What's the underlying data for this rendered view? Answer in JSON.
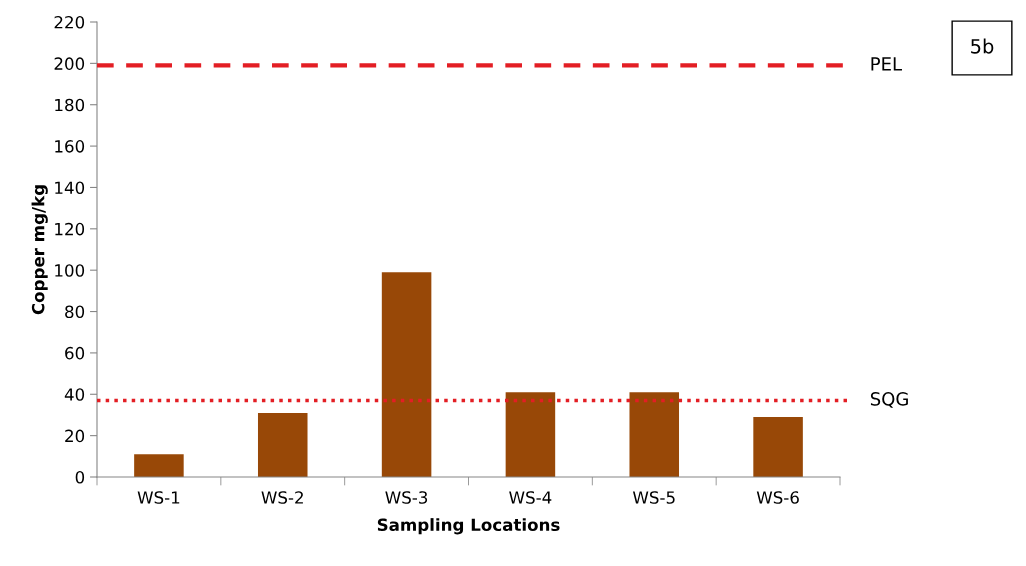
{
  "chart_data": {
    "type": "bar",
    "xlabel": "Sampling Locations",
    "ylabel": "Copper mg/kg",
    "categories": [
      "WS-1",
      "WS-2",
      "WS-3",
      "WS-4",
      "WS-5",
      "WS-6"
    ],
    "values": [
      11,
      31,
      99,
      41,
      41,
      29
    ],
    "color": "#984807",
    "ylim": [
      0,
      220
    ],
    "yticks": [
      0,
      20,
      40,
      60,
      80,
      100,
      120,
      140,
      160,
      180,
      200,
      220
    ],
    "grid": false,
    "ref_lines": [
      {
        "axis": "y",
        "value": 199,
        "label": "PEL",
        "color": "#e31e24",
        "line_style": "dashed"
      },
      {
        "axis": "y",
        "value": 37,
        "label": "SQG",
        "color": "#e31e24",
        "line_style": "dotted"
      }
    ],
    "annotations": [
      "5b"
    ]
  }
}
